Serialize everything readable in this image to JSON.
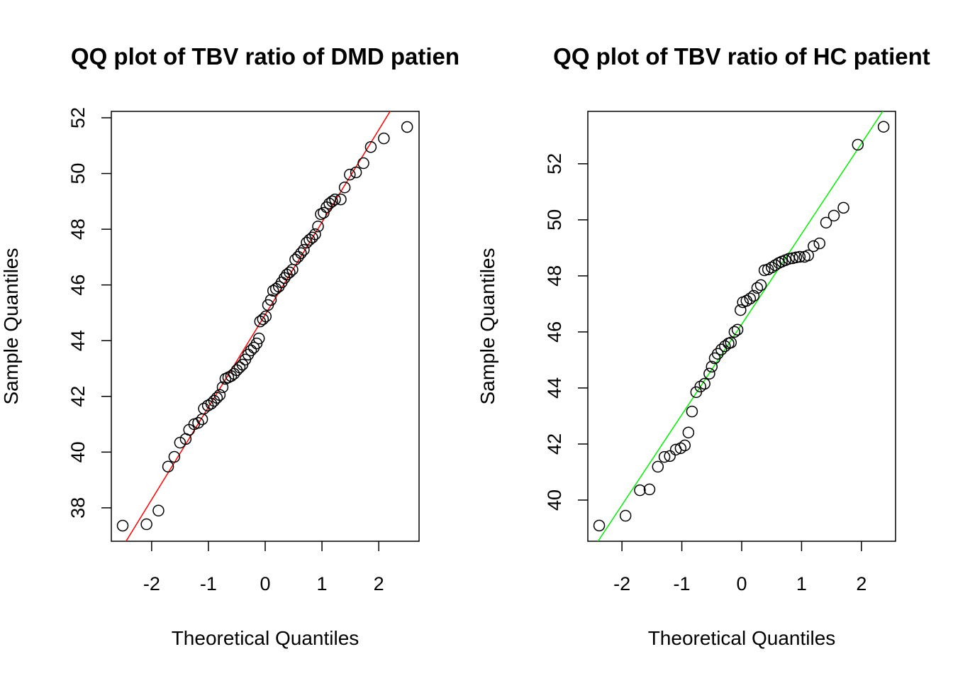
{
  "chart_data": [
    {
      "type": "scatter",
      "title": "QQ plot of TBV ratio of DMD patien",
      "xlabel": "Theoretical Quantiles",
      "ylabel": "Sample Quantiles",
      "xlim": [
        -2.71,
        2.71
      ],
      "ylim": [
        36.8,
        52.23
      ],
      "xticks": [
        -2,
        -1,
        0,
        1,
        2
      ],
      "yticks": [
        38,
        40,
        42,
        44,
        46,
        48,
        50,
        52
      ],
      "point_color": "#000000",
      "qq_line": {
        "intercept": 44.93,
        "slope": 3.318,
        "color": "#ff0000"
      },
      "x": [
        -2.51,
        -2.09,
        -1.88,
        -1.71,
        -1.6,
        -1.5,
        -1.4,
        -1.34,
        -1.25,
        -1.18,
        -1.11,
        -1.08,
        -1.01,
        -0.95,
        -0.9,
        -0.85,
        -0.8,
        -0.75,
        -0.7,
        -0.65,
        -0.6,
        -0.55,
        -0.5,
        -0.45,
        -0.4,
        -0.35,
        -0.3,
        -0.25,
        -0.2,
        -0.15,
        -0.11,
        -0.09,
        -0.04,
        0.01,
        0.05,
        0.1,
        0.14,
        0.19,
        0.24,
        0.29,
        0.34,
        0.38,
        0.43,
        0.48,
        0.53,
        0.58,
        0.63,
        0.68,
        0.73,
        0.78,
        0.83,
        0.88,
        0.93,
        0.98,
        1.03,
        1.08,
        1.13,
        1.18,
        1.23,
        1.33,
        1.4,
        1.49,
        1.6,
        1.73,
        1.86,
        2.09,
        2.5
      ],
      "y": [
        37.36,
        37.41,
        37.9,
        39.48,
        39.83,
        40.34,
        40.47,
        40.8,
        41.0,
        41.05,
        41.18,
        41.56,
        41.67,
        41.74,
        41.84,
        41.95,
        42.05,
        42.33,
        42.63,
        42.68,
        42.73,
        42.81,
        42.94,
        43.04,
        43.14,
        43.32,
        43.5,
        43.65,
        43.75,
        43.9,
        44.08,
        44.69,
        44.77,
        44.87,
        45.28,
        45.46,
        45.79,
        45.86,
        45.94,
        46.09,
        46.25,
        46.37,
        46.45,
        46.55,
        46.91,
        47.01,
        47.14,
        47.26,
        47.52,
        47.62,
        47.7,
        47.82,
        48.1,
        48.54,
        48.59,
        48.79,
        48.92,
        49.0,
        49.07,
        49.07,
        49.5,
        49.96,
        50.04,
        50.37,
        50.95,
        51.26,
        51.67
      ]
    },
    {
      "type": "scatter",
      "title": "QQ plot of TBV ratio of HC patient",
      "xlabel": "Theoretical Quantiles",
      "ylabel": "Sample Quantiles",
      "xlim": [
        -2.57,
        2.57
      ],
      "ylim": [
        38.53,
        53.87
      ],
      "xticks": [
        -2,
        -1,
        0,
        1,
        2
      ],
      "yticks": [
        40,
        42,
        44,
        46,
        48,
        50,
        52
      ],
      "point_color": "#000000",
      "qq_line": {
        "intercept": 46.27,
        "slope": 3.226,
        "color": "#00ee00"
      },
      "x": [
        -2.38,
        -1.94,
        -1.7,
        -1.54,
        -1.4,
        -1.29,
        -1.2,
        -1.1,
        -1.02,
        -0.95,
        -0.89,
        -0.83,
        -0.76,
        -0.69,
        -0.62,
        -0.54,
        -0.5,
        -0.45,
        -0.4,
        -0.34,
        -0.28,
        -0.22,
        -0.18,
        -0.12,
        -0.07,
        -0.02,
        0.02,
        0.08,
        0.14,
        0.2,
        0.26,
        0.32,
        0.38,
        0.44,
        0.5,
        0.56,
        0.62,
        0.67,
        0.73,
        0.79,
        0.85,
        0.91,
        0.97,
        1.05,
        1.11,
        1.2,
        1.3,
        1.41,
        1.54,
        1.7,
        1.94,
        2.37
      ],
      "y": [
        39.09,
        39.44,
        40.35,
        40.38,
        41.19,
        41.54,
        41.57,
        41.8,
        41.85,
        41.95,
        42.41,
        43.16,
        43.85,
        44.05,
        44.15,
        44.51,
        44.76,
        45.06,
        45.22,
        45.37,
        45.49,
        45.59,
        45.62,
        46.0,
        46.08,
        46.78,
        47.06,
        47.11,
        47.19,
        47.29,
        47.57,
        47.67,
        48.2,
        48.23,
        48.3,
        48.38,
        48.46,
        48.51,
        48.56,
        48.61,
        48.63,
        48.66,
        48.68,
        48.68,
        48.73,
        49.06,
        49.16,
        49.9,
        50.15,
        50.43,
        52.68,
        53.32
      ]
    }
  ]
}
